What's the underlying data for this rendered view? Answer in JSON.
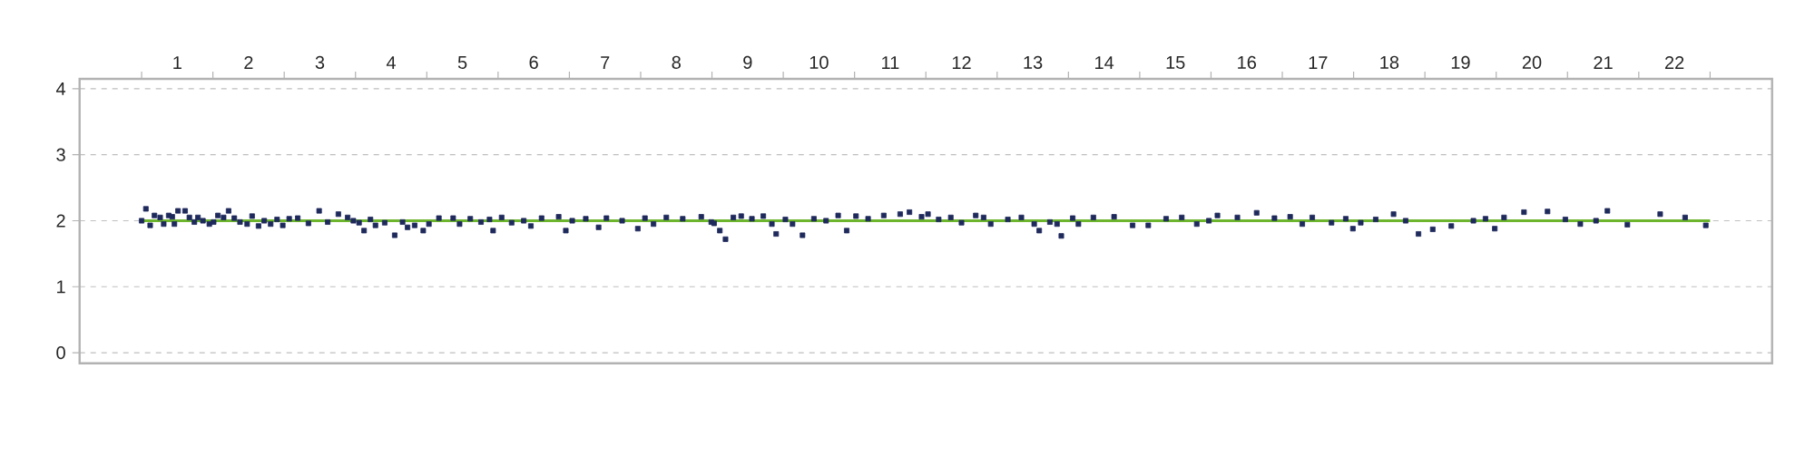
{
  "chart_data": {
    "type": "scatter",
    "color": "#1f2a5c",
    "marker": "square",
    "x": [
      0.5,
      0.56,
      0.62,
      0.68,
      0.76,
      0.81,
      0.88,
      0.93,
      0.96,
      1.01,
      1.11,
      1.17,
      1.24,
      1.29,
      1.36,
      1.45,
      1.51,
      1.57,
      1.65,
      1.72,
      1.8,
      1.88,
      1.98,
      2.05,
      2.14,
      2.22,
      2.31,
      2.4,
      2.48,
      2.57,
      2.69,
      2.84,
      2.99,
      3.11,
      3.26,
      3.39,
      3.47,
      3.55,
      3.62,
      3.71,
      3.78,
      3.91,
      4.05,
      4.16,
      4.23,
      4.33,
      4.45,
      4.53,
      4.67,
      4.87,
      4.96,
      5.11,
      5.26,
      5.38,
      5.43,
      5.55,
      5.69,
      5.86,
      5.96,
      6.11,
      6.35,
      6.45,
      6.54,
      6.73,
      6.91,
      7.02,
      7.24,
      7.46,
      7.56,
      7.68,
      7.86,
      8.09,
      8.35,
      8.49,
      8.53,
      8.61,
      8.69,
      8.8,
      8.91,
      9.06,
      9.22,
      9.34,
      9.4,
      9.53,
      9.63,
      9.77,
      9.93,
      10.1,
      10.27,
      10.39,
      10.52,
      10.69,
      10.91,
      11.14,
      11.27,
      11.44,
      11.53,
      11.68,
      11.85,
      12.0,
      12.2,
      12.31,
      12.41,
      12.65,
      12.84,
      13.02,
      13.09,
      13.24,
      13.34,
      13.4,
      13.56,
      13.64,
      13.85,
      14.14,
      14.4,
      14.62,
      14.87,
      15.09,
      15.3,
      15.47,
      15.59,
      15.87,
      16.14,
      16.39,
      16.61,
      16.78,
      16.92,
      17.19,
      17.39,
      17.49,
      17.6,
      17.81,
      18.06,
      18.23,
      18.41,
      18.61,
      18.87,
      19.18,
      19.35,
      19.48,
      19.61,
      19.89,
      20.22,
      20.47,
      20.68,
      20.9,
      21.06,
      21.34,
      21.8,
      22.15,
      22.44
    ],
    "values": [
      2.0,
      2.18,
      1.93,
      2.08,
      2.05,
      1.95,
      2.08,
      2.06,
      1.95,
      2.15,
      2.15,
      2.05,
      1.98,
      2.05,
      2.0,
      1.95,
      1.98,
      2.08,
      2.05,
      2.15,
      2.04,
      1.98,
      1.95,
      2.07,
      1.92,
      2.0,
      1.95,
      2.02,
      1.93,
      2.03,
      2.04,
      1.96,
      2.15,
      1.98,
      2.1,
      2.05,
      2.0,
      1.97,
      1.85,
      2.02,
      1.93,
      1.97,
      1.78,
      1.98,
      1.9,
      1.93,
      1.85,
      1.95,
      2.04,
      2.04,
      1.95,
      2.03,
      1.98,
      2.02,
      1.85,
      2.05,
      1.97,
      2.0,
      1.92,
      2.04,
      2.06,
      1.85,
      2.0,
      2.03,
      1.9,
      2.04,
      2.0,
      1.88,
      2.04,
      1.95,
      2.05,
      2.03,
      2.06,
      1.98,
      1.96,
      1.85,
      1.72,
      2.05,
      2.07,
      2.03,
      2.07,
      1.95,
      1.8,
      2.02,
      1.95,
      1.78,
      2.03,
      2.0,
      2.08,
      1.85,
      2.07,
      2.03,
      2.08,
      2.1,
      2.13,
      2.06,
      2.1,
      2.02,
      2.05,
      1.97,
      2.08,
      2.05,
      1.95,
      2.02,
      2.05,
      1.95,
      1.85,
      1.98,
      1.95,
      1.77,
      2.04,
      1.95,
      2.05,
      2.06,
      1.93,
      1.93,
      2.03,
      2.05,
      1.95,
      2.0,
      2.08,
      2.05,
      2.12,
      2.04,
      2.06,
      1.95,
      2.05,
      1.97,
      2.03,
      1.88,
      1.97,
      2.02,
      2.1,
      2.0,
      1.8,
      1.87,
      1.92,
      2.0,
      2.03,
      1.88,
      2.05,
      2.13,
      2.14,
      2.02,
      1.95,
      2.0,
      2.15,
      1.94,
      2.1,
      2.05,
      1.93
    ],
    "xlim": [
      -0.37,
      23.37
    ],
    "ylim": [
      -0.16,
      4.15
    ],
    "xticks": [
      {
        "value": 0.5,
        "label": null
      },
      1,
      {
        "value": 1.5,
        "label": null
      },
      2,
      {
        "value": 2.5,
        "label": null
      },
      3,
      {
        "value": 3.5,
        "label": null
      },
      4,
      {
        "value": 4.5,
        "label": null
      },
      5,
      {
        "value": 5.5,
        "label": null
      },
      6,
      {
        "value": 6.5,
        "label": null
      },
      7,
      {
        "value": 7.5,
        "label": null
      },
      8,
      {
        "value": 8.5,
        "label": null
      },
      9,
      {
        "value": 9.5,
        "label": null
      },
      10,
      {
        "value": 10.5,
        "label": null
      },
      11,
      {
        "value": 11.5,
        "label": null
      },
      12,
      {
        "value": 12.5,
        "label": null
      },
      13,
      {
        "value": 13.5,
        "label": null
      },
      14,
      {
        "value": 14.5,
        "label": null
      },
      15,
      {
        "value": 15.5,
        "label": null
      },
      16,
      {
        "value": 16.5,
        "label": null
      },
      17,
      {
        "value": 17.5,
        "label": null
      },
      18,
      {
        "value": 18.5,
        "label": null
      },
      19,
      {
        "value": 19.5,
        "label": null
      },
      20,
      {
        "value": 20.5,
        "label": null
      },
      21,
      {
        "value": 21.5,
        "label": null
      },
      22,
      {
        "value": 22.5,
        "label": null
      }
    ],
    "yticks": [
      0,
      1,
      2,
      3,
      4
    ],
    "grid": "y",
    "ref_lines": [
      {
        "axis": "y",
        "value": 2,
        "color": "#6cb52d"
      }
    ]
  }
}
